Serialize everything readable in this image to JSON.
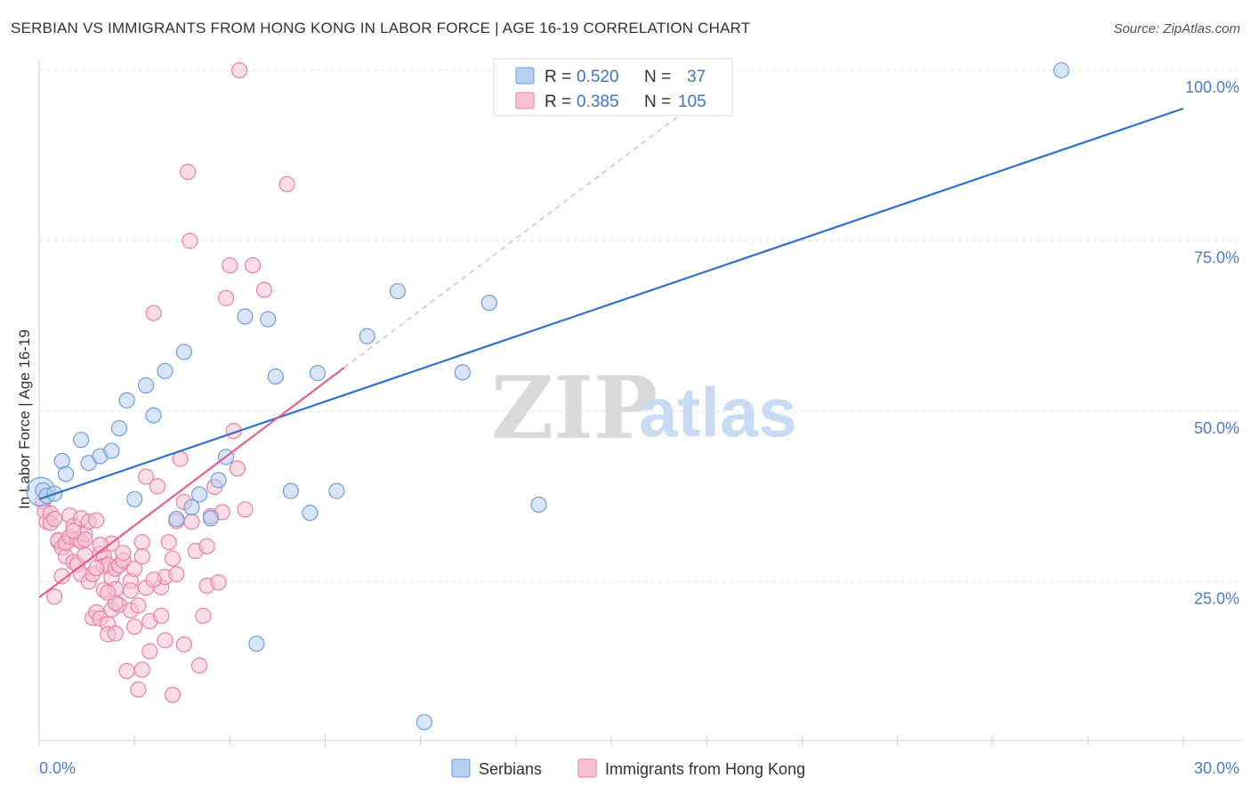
{
  "title": "SERBIAN VS IMMIGRANTS FROM HONG KONG IN LABOR FORCE | AGE 16-19 CORRELATION CHART",
  "source": "Source: ZipAtlas.com",
  "watermark": {
    "zip": "ZIP",
    "atlas": "atlas"
  },
  "colors": {
    "blue_fill": "#b7d0f0",
    "blue_stroke": "#6f9ddc",
    "blue_line": "#2f6fcf",
    "pink_fill": "#f7c1d2",
    "pink_stroke": "#ea7fa3",
    "pink_line": "#e4608c",
    "grid": "#e2e2e2",
    "axis_text": "#4a7cc7"
  },
  "legend": {
    "row1": {
      "r_label": "R = ",
      "r_value": "0.520",
      "n_label": "N = ",
      "n_value": "37"
    },
    "row2": {
      "r_label": "R = ",
      "r_value": "0.385",
      "n_label": "N = ",
      "n_value": "105"
    }
  },
  "bottom_legend": {
    "series1": "Serbians",
    "series2": "Immigrants from Hong Kong"
  },
  "chart_data": {
    "type": "scatter",
    "title": "SERBIAN VS IMMIGRANTS FROM HONG KONG IN LABOR FORCE | AGE 16-19 CORRELATION CHART",
    "xlabel": "",
    "ylabel": "In Labor Force | Age 16-19",
    "xlim": [
      0,
      30
    ],
    "ylim": [
      0,
      105
    ],
    "x_tick_labels": {
      "min": "0.0%",
      "max": "30.0%"
    },
    "y_ticks": [
      25,
      50,
      75,
      100
    ],
    "y_tick_labels": [
      "25.0%",
      "50.0%",
      "75.0%",
      "100.0%"
    ],
    "grid": true,
    "series": [
      {
        "name": "Serbians",
        "R": 0.52,
        "N": 37,
        "trend": {
          "x": [
            0,
            30
          ],
          "y": [
            37.1,
            94.4
          ],
          "style": "solid"
        },
        "points": [
          [
            0.1,
            38.4
          ],
          [
            0.2,
            37.6
          ],
          [
            0.4,
            37.9
          ],
          [
            0.6,
            42.7
          ],
          [
            0.7,
            40.8
          ],
          [
            1.1,
            45.8
          ],
          [
            1.3,
            42.4
          ],
          [
            1.6,
            43.4
          ],
          [
            1.9,
            44.2
          ],
          [
            2.1,
            47.5
          ],
          [
            2.3,
            51.6
          ],
          [
            2.5,
            37.1
          ],
          [
            2.8,
            53.8
          ],
          [
            3.0,
            49.4
          ],
          [
            3.3,
            55.9
          ],
          [
            3.6,
            34.2
          ],
          [
            3.8,
            58.7
          ],
          [
            4.0,
            35.9
          ],
          [
            4.2,
            37.8
          ],
          [
            4.5,
            34.3
          ],
          [
            4.7,
            39.9
          ],
          [
            4.9,
            43.3
          ],
          [
            5.4,
            63.9
          ],
          [
            5.7,
            15.9
          ],
          [
            6.0,
            63.5
          ],
          [
            6.2,
            55.1
          ],
          [
            6.6,
            38.3
          ],
          [
            7.1,
            35.1
          ],
          [
            7.3,
            55.6
          ],
          [
            7.8,
            38.3
          ],
          [
            8.6,
            61.0
          ],
          [
            9.4,
            67.6
          ],
          [
            10.1,
            4.4
          ],
          [
            11.1,
            55.7
          ],
          [
            11.8,
            65.9
          ],
          [
            13.1,
            36.3
          ],
          [
            26.8,
            100.0
          ]
        ]
      },
      {
        "name": "Immigrants from Hong Kong",
        "R": 0.385,
        "N": 105,
        "trend": {
          "x": [
            0,
            8.0
          ],
          "y": [
            22.7,
            56.4
          ],
          "style": "solid",
          "extension": {
            "x": [
              8.0,
              17.5
            ],
            "y": [
              56.4,
              96.4
            ],
            "style": "dashed"
          }
        },
        "points": [
          [
            0.1,
            36.8
          ],
          [
            0.15,
            35.3
          ],
          [
            0.2,
            33.8
          ],
          [
            0.3,
            35.0
          ],
          [
            0.3,
            33.6
          ],
          [
            0.4,
            34.2
          ],
          [
            0.4,
            22.8
          ],
          [
            0.5,
            30.9
          ],
          [
            0.5,
            31.1
          ],
          [
            0.6,
            25.8
          ],
          [
            0.6,
            30.0
          ],
          [
            0.7,
            28.7
          ],
          [
            0.7,
            30.7
          ],
          [
            0.8,
            31.6
          ],
          [
            0.8,
            34.7
          ],
          [
            0.9,
            27.9
          ],
          [
            0.9,
            33.2
          ],
          [
            1.0,
            27.5
          ],
          [
            1.0,
            31.2
          ],
          [
            1.1,
            26.1
          ],
          [
            1.1,
            30.9
          ],
          [
            1.1,
            34.3
          ],
          [
            1.2,
            32.0
          ],
          [
            1.2,
            31.2
          ],
          [
            1.3,
            25.0
          ],
          [
            1.3,
            33.8
          ],
          [
            1.4,
            19.7
          ],
          [
            1.4,
            26.1
          ],
          [
            1.5,
            20.5
          ],
          [
            1.5,
            34.0
          ],
          [
            1.6,
            19.6
          ],
          [
            1.6,
            29.1
          ],
          [
            1.7,
            23.8
          ],
          [
            1.7,
            28.7
          ],
          [
            1.7,
            27.3
          ],
          [
            1.8,
            18.8
          ],
          [
            1.8,
            17.3
          ],
          [
            1.8,
            27.5
          ],
          [
            1.9,
            30.6
          ],
          [
            1.9,
            20.9
          ],
          [
            1.9,
            25.6
          ],
          [
            2.0,
            23.9
          ],
          [
            2.0,
            26.9
          ],
          [
            2.0,
            17.4
          ],
          [
            2.1,
            27.4
          ],
          [
            2.1,
            21.6
          ],
          [
            2.2,
            28.1
          ],
          [
            2.2,
            29.2
          ],
          [
            2.3,
            11.9
          ],
          [
            2.4,
            25.1
          ],
          [
            2.4,
            20.8
          ],
          [
            2.5,
            26.9
          ],
          [
            2.5,
            18.4
          ],
          [
            2.6,
            9.2
          ],
          [
            2.6,
            21.5
          ],
          [
            2.7,
            12.1
          ],
          [
            2.7,
            30.8
          ],
          [
            2.8,
            40.4
          ],
          [
            2.8,
            24.1
          ],
          [
            2.9,
            19.2
          ],
          [
            2.9,
            14.8
          ],
          [
            3.0,
            64.4
          ],
          [
            3.1,
            39.0
          ],
          [
            3.2,
            20.0
          ],
          [
            3.2,
            24.2
          ],
          [
            3.3,
            16.4
          ],
          [
            3.3,
            25.7
          ],
          [
            3.4,
            30.8
          ],
          [
            3.5,
            8.4
          ],
          [
            3.5,
            28.4
          ],
          [
            3.6,
            26.1
          ],
          [
            3.7,
            43.0
          ],
          [
            3.8,
            15.8
          ],
          [
            3.8,
            36.7
          ],
          [
            3.9,
            85.1
          ],
          [
            3.95,
            75.0
          ],
          [
            4.0,
            33.8
          ],
          [
            4.1,
            29.5
          ],
          [
            4.2,
            12.7
          ],
          [
            4.3,
            20.0
          ],
          [
            4.4,
            24.4
          ],
          [
            4.5,
            34.6
          ],
          [
            4.6,
            38.9
          ],
          [
            4.7,
            24.9
          ],
          [
            4.8,
            35.2
          ],
          [
            4.9,
            66.6
          ],
          [
            5.0,
            71.4
          ],
          [
            5.1,
            47.1
          ],
          [
            5.2,
            41.6
          ],
          [
            5.4,
            35.6
          ],
          [
            5.6,
            71.4
          ],
          [
            5.9,
            67.8
          ],
          [
            6.5,
            83.3
          ],
          [
            5.25,
            100.0
          ],
          [
            3.0,
            25.3
          ],
          [
            2.4,
            23.7
          ],
          [
            1.6,
            30.4
          ],
          [
            1.2,
            28.9
          ],
          [
            0.9,
            32.4
          ],
          [
            2.7,
            28.7
          ],
          [
            3.6,
            33.9
          ],
          [
            4.4,
            30.2
          ],
          [
            1.5,
            27.0
          ],
          [
            2.0,
            21.9
          ],
          [
            1.8,
            23.4
          ]
        ]
      }
    ]
  }
}
